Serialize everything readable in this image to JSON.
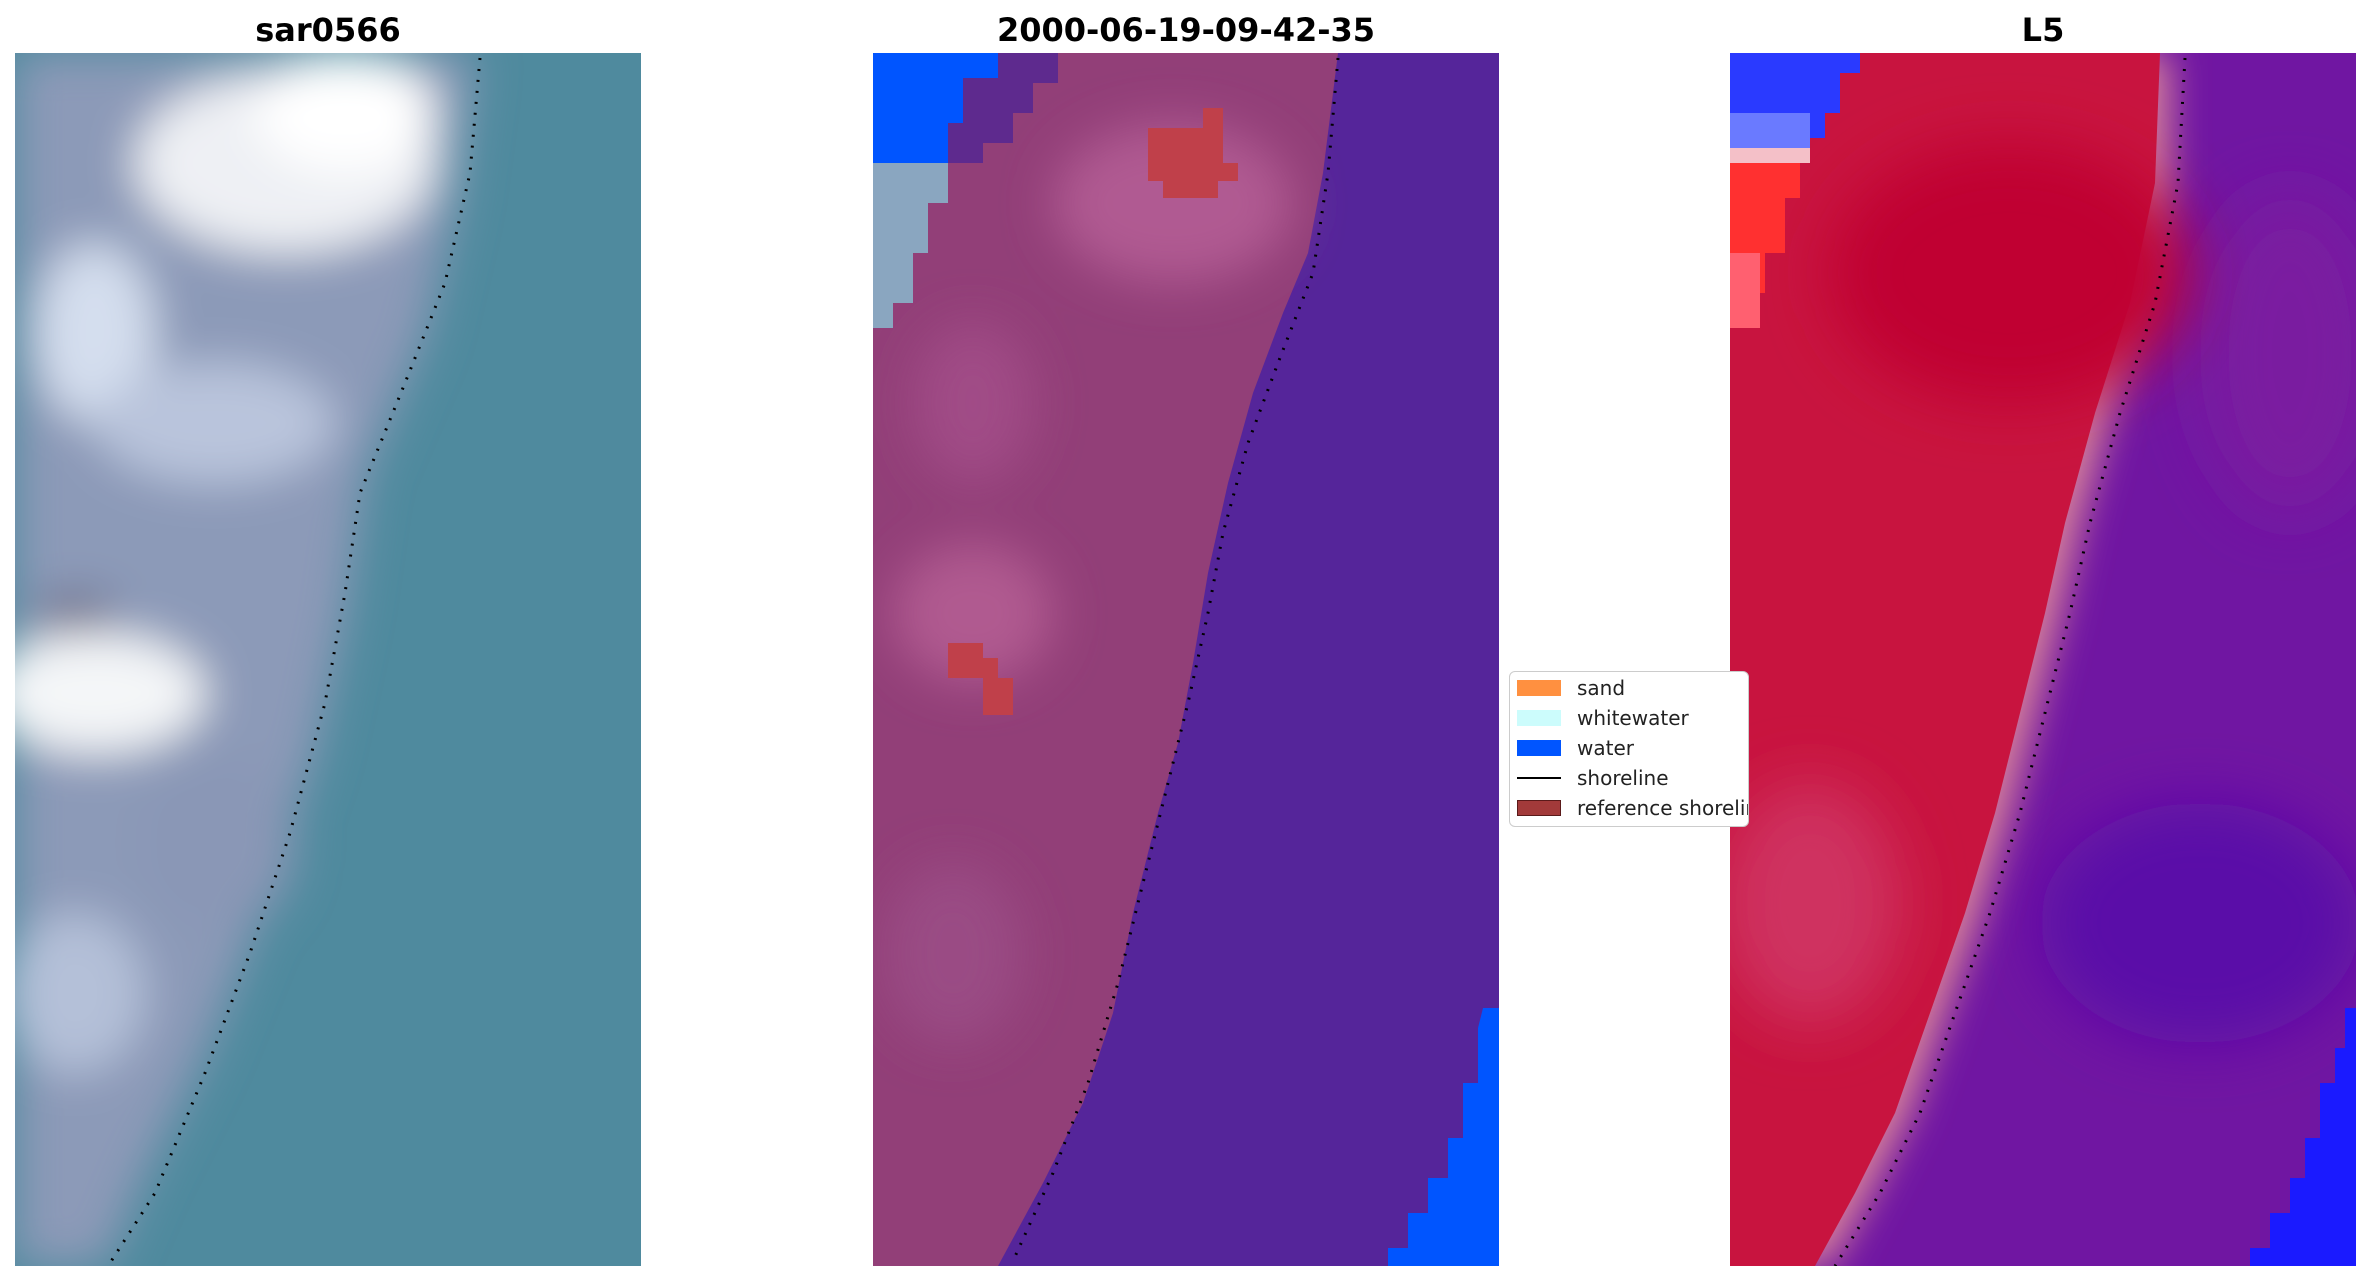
{
  "panels": [
    {
      "title": "sar0566",
      "icon": "rgb-image"
    },
    {
      "title": "2000-06-19-09-42-35",
      "icon": "classified-image"
    },
    {
      "title": "L5",
      "icon": "index-image"
    }
  ],
  "legend": {
    "items": [
      {
        "label": "sand",
        "color": "#ff9040",
        "kind": "patch"
      },
      {
        "label": "whitewater",
        "color": "#ccfcfc",
        "kind": "patch"
      },
      {
        "label": "water",
        "color": "#0055ff",
        "kind": "patch"
      },
      {
        "label": "shoreline",
        "color": "#000000",
        "kind": "line"
      },
      {
        "label": "reference shoreline",
        "color": "#a23a3a",
        "kind": "patch"
      }
    ]
  },
  "colors": {
    "rgb_water": "#4e8aa0",
    "rgb_land": "#9aa6c2",
    "rgb_bright": "#f2f4f6",
    "class_land": "#923f78",
    "class_sea": "#55259a",
    "class_water": "#0055ff",
    "class_ref": "#c0404a",
    "index_land": "#c8143f",
    "index_sea": "#7016a2",
    "index_blue": "#1a1aff",
    "index_red": "#ff2020"
  }
}
